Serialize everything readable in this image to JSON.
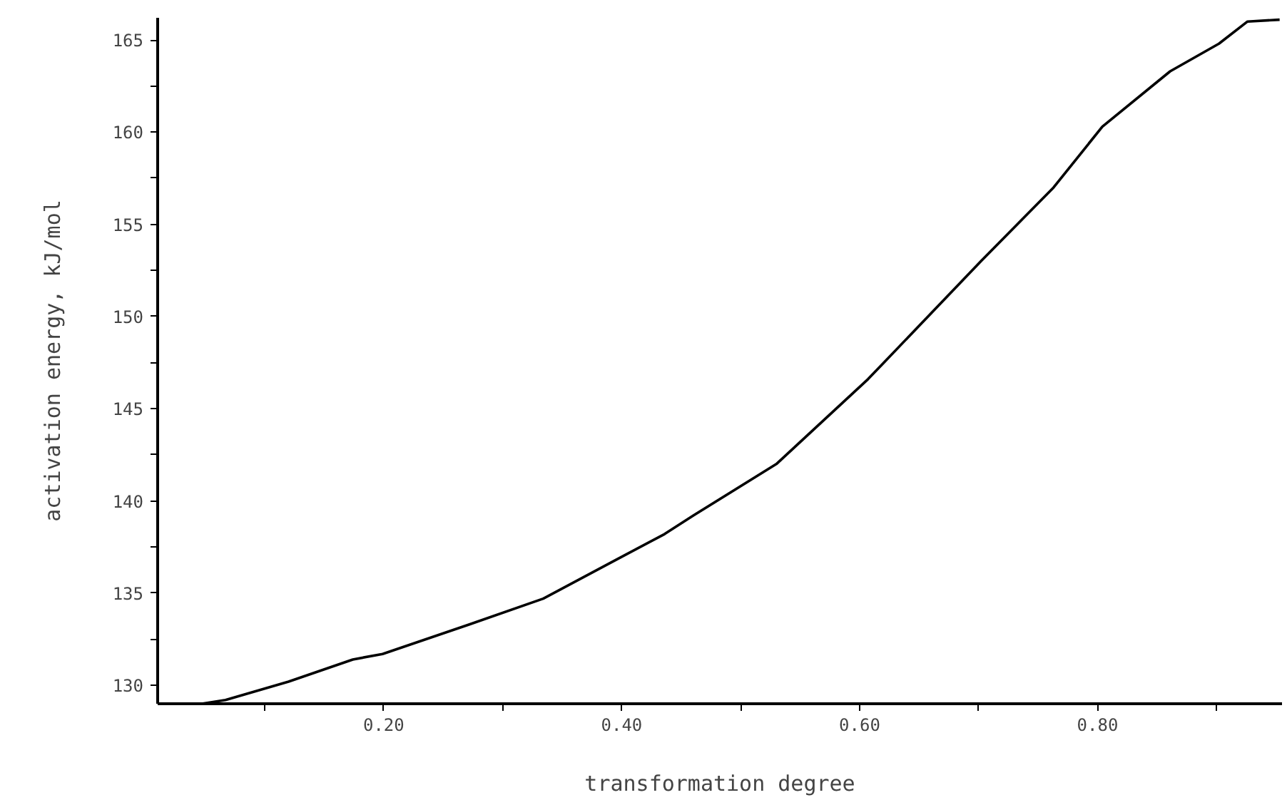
{
  "chart_data": {
    "type": "line",
    "xlabel": "transformation degree",
    "ylabel": "activation energy, kJ/mol",
    "xlim": [
      0.01,
      0.955
    ],
    "ylim": [
      129,
      166.2
    ],
    "xticks": [
      {
        "value": 0.1,
        "label": null
      },
      {
        "value": 0.2,
        "label": "0.20"
      },
      {
        "value": 0.3,
        "label": null
      },
      {
        "value": 0.4,
        "label": "0.40"
      },
      {
        "value": 0.5,
        "label": null
      },
      {
        "value": 0.6,
        "label": "0.60"
      },
      {
        "value": 0.7,
        "label": null
      },
      {
        "value": 0.8,
        "label": "0.80"
      },
      {
        "value": 0.9,
        "label": null
      }
    ],
    "yticks": [
      130,
      {
        "value": 132.5,
        "label": null
      },
      135,
      {
        "value": 137.5,
        "label": null
      },
      140,
      {
        "value": 142.5,
        "label": null
      },
      145,
      {
        "value": 147.5,
        "label": null
      },
      150,
      {
        "value": 152.5,
        "label": null
      },
      155,
      {
        "value": 157.5,
        "label": null
      },
      160,
      {
        "value": 162.5,
        "label": null
      },
      165
    ],
    "grid": false,
    "marker": "none",
    "line_style": "solid",
    "series": [
      {
        "color": "#000000",
        "x": [
          0.047,
          0.067,
          0.12,
          0.174,
          0.199,
          0.272,
          0.334,
          0.395,
          0.436,
          0.46,
          0.53,
          0.607,
          0.702,
          0.763,
          0.804,
          0.861,
          0.902,
          0.926,
          0.953
        ],
        "values": [
          129.0,
          129.2,
          130.2,
          131.4,
          131.7,
          133.3,
          134.7,
          136.8,
          138.2,
          139.2,
          142.0,
          146.6,
          153.0,
          157.0,
          160.3,
          163.3,
          164.8,
          166.0,
          166.1
        ]
      }
    ]
  }
}
